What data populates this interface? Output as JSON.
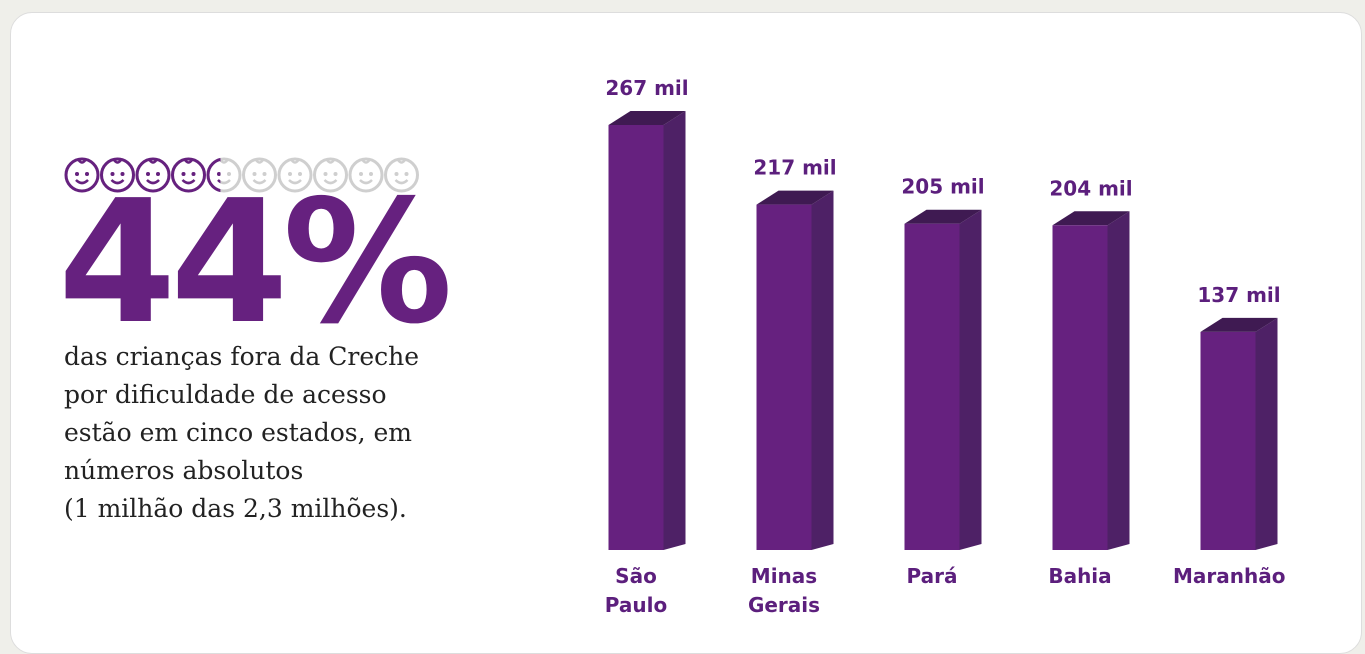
{
  "highlight": {
    "value": 44,
    "label": "44%"
  },
  "description": [
    "das crianças fora da Creche",
    "por dificuldade de acesso",
    "estão em cinco estados, em",
    "números absolutos",
    "(1 milhão das 2,3 milhões)."
  ],
  "chart_data": {
    "type": "bar",
    "categories": [
      "São Paulo",
      "Minas Gerais",
      "Pará",
      "Bahia",
      "Maranhão"
    ],
    "values": [
      267,
      217,
      205,
      204,
      137
    ],
    "value_labels": [
      "267 mil",
      "217 mil",
      "205 mil",
      "204 mil",
      "137 mil"
    ],
    "color": "#66217f",
    "ylim": [
      0,
      267
    ]
  }
}
